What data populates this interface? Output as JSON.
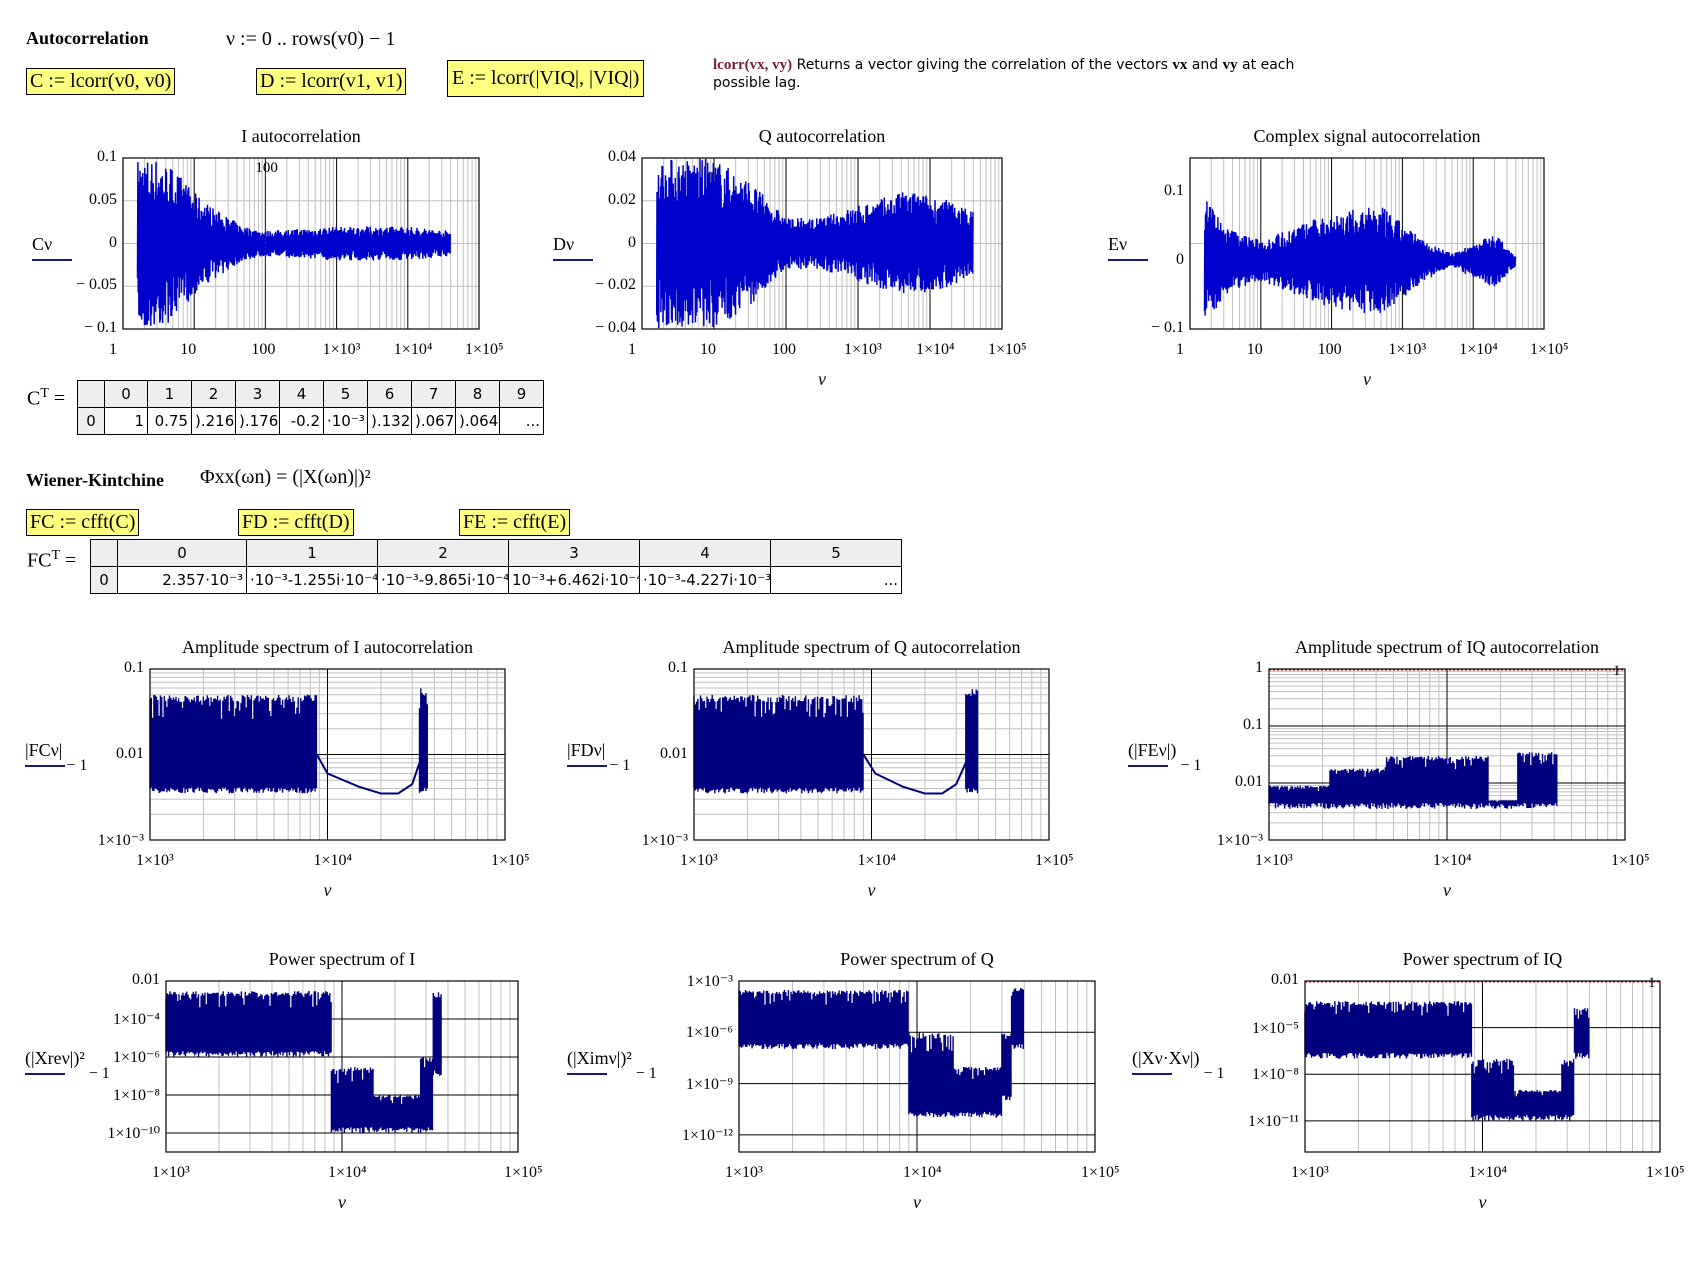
{
  "worksheet": {
    "section_autocorr": {
      "heading": "Autocorrelation",
      "range_def": "ν := 0 .. rows(v0) − 1",
      "expr_c": "C := lcorr(v0, v0)",
      "expr_d": "D := lcorr(v1, v1)",
      "expr_e": "E := lcorr(|VIQ|, |VIQ|)"
    },
    "help": {
      "func": "lcorr(vx, vy)",
      "text1": " Returns a vector giving the correlation of the vectors ",
      "vx": "vx",
      "and": " and ",
      "vy": "vy",
      "text2": " at each possible lag."
    },
    "ct_table": {
      "label": "C",
      "sup": "T",
      "eq": "=",
      "col_headers": [
        "",
        "0",
        "1",
        "2",
        "3",
        "4",
        "5",
        "6",
        "7",
        "8",
        "9"
      ],
      "row": [
        "0",
        "1",
        "0.75",
        ").216",
        ").176",
        "-0.2",
        "·10⁻³",
        ").132",
        ").067",
        ").064",
        "..."
      ]
    },
    "section_wk": {
      "heading": "Wiener-Kintchine",
      "formula": "Φxx(ωn) = (|X(ωn)|)²",
      "expr_fc": "FC := cfft(C)",
      "expr_fd": "FD := cfft(D)",
      "expr_fe": "FE := cfft(E)"
    },
    "fct_table": {
      "label": "FC",
      "sup": "T",
      "eq": "=",
      "col_headers": [
        "",
        "0",
        "1",
        "2",
        "3",
        "4",
        "5"
      ],
      "row": [
        "0",
        "2.357·10⁻³",
        "·10⁻³-1.255i·10⁻⁴",
        "·10⁻³-9.865i·10⁻⁴",
        "10⁻³+6.462i·10⁻⁴",
        "·10⁻³-4.227i·10⁻³",
        "..."
      ]
    }
  },
  "colors": {
    "trace": "#0000cc",
    "trace_dark": "#000080",
    "highlight": "#ffff80",
    "grid_major": "#000000",
    "grid_minor": "#c0c0c0",
    "marker": "#cc0000",
    "help_func": "#7a1a3a"
  },
  "chart_data": [
    {
      "id": "i_autocorr",
      "type": "line",
      "title": "I autocorrelation",
      "ylabel": "Cν",
      "xlabel": "",
      "xscale": "log",
      "xlim": [
        1,
        100000
      ],
      "ylim": [
        -0.1,
        0.1
      ],
      "xticks": [
        "1",
        "10",
        "100",
        "1×10³",
        "1×10⁴",
        "1×10⁵"
      ],
      "yticks": [
        "0.1",
        "0.05",
        "0",
        "− 0.05",
        "− 0.1"
      ],
      "marker": {
        "x": 100,
        "label": "100"
      },
      "envelope": {
        "x": [
          2,
          3,
          5,
          10,
          20,
          50,
          100,
          1000,
          10000,
          40000
        ],
        "amp": [
          0.1,
          0.1,
          0.09,
          0.06,
          0.04,
          0.02,
          0.015,
          0.02,
          0.02,
          0.015
        ]
      }
    },
    {
      "id": "q_autocorr",
      "type": "line",
      "title": "Q autocorrelation",
      "ylabel": "Dν",
      "xlabel": "ν",
      "xscale": "log",
      "xlim": [
        1,
        100000
      ],
      "ylim": [
        -0.04,
        0.04
      ],
      "xticks": [
        "1",
        "10",
        "100",
        "1×10³",
        "1×10⁴",
        "1×10⁵"
      ],
      "yticks": [
        "0.04",
        "0.02",
        "0",
        "− 0.02",
        "− 0.04"
      ],
      "envelope": {
        "x": [
          2,
          5,
          10,
          30,
          100,
          300,
          1000,
          5000,
          20000,
          40000
        ],
        "amp": [
          0.04,
          0.04,
          0.04,
          0.03,
          0.012,
          0.012,
          0.018,
          0.025,
          0.02,
          0.015
        ]
      }
    },
    {
      "id": "complex_autocorr",
      "type": "line",
      "title": "Complex signal autocorrelation",
      "ylabel": "Eν",
      "xlabel": "ν",
      "xscale": "log",
      "xlim": [
        1,
        100000
      ],
      "ylim": [
        -0.1,
        0.15
      ],
      "xticks": [
        "1",
        "10",
        "100",
        "1×10³",
        "1×10⁴",
        "1×10⁵"
      ],
      "yticks": [
        "0.1",
        "0",
        "− 0.1"
      ],
      "envelope": {
        "x": [
          1,
          3,
          10,
          30,
          100,
          500,
          2000,
          5000,
          20000,
          40000
        ],
        "amp": [
          0.15,
          0.05,
          0.03,
          0.05,
          0.07,
          0.08,
          0.03,
          0.01,
          0.04,
          0.008
        ]
      }
    },
    {
      "id": "amp_i",
      "type": "line",
      "title": "Amplitude spectrum of I autocorrelation",
      "ylabel": "|FCν|",
      "ylabel_sub": "− 1",
      "xlabel": "ν",
      "xscale": "log",
      "yscale": "log",
      "xlim": [
        1000,
        100000
      ],
      "ylim": [
        0.001,
        0.1
      ],
      "xticks": [
        "1×10³",
        "1×10⁴",
        "1×10⁵"
      ],
      "yticks": [
        "0.1",
        "0.01",
        "1×10⁻³"
      ],
      "bands": [
        {
          "x": [
            1000,
            8700
          ],
          "lo": 0.0035,
          "hi": 0.05
        },
        {
          "x": [
            33000,
            37000
          ],
          "lo": 0.0035,
          "hi": 0.06
        }
      ],
      "curve": {
        "x": [
          8700,
          10000,
          15000,
          20000,
          25000,
          30000,
          33000
        ],
        "y": [
          0.01,
          0.006,
          0.0042,
          0.0035,
          0.0035,
          0.0045,
          0.008
        ]
      }
    },
    {
      "id": "amp_q",
      "type": "line",
      "title": "Amplitude spectrum of Q autocorrelation",
      "ylabel": "|FDν|",
      "ylabel_sub": "− 1",
      "xlabel": "ν",
      "xscale": "log",
      "yscale": "log",
      "xlim": [
        1000,
        100000
      ],
      "ylim": [
        0.001,
        0.1
      ],
      "xticks": [
        "1×10³",
        "1×10⁴",
        "1×10⁵"
      ],
      "yticks": [
        "0.1",
        "0.01",
        "1×10⁻³"
      ],
      "bands": [
        {
          "x": [
            1000,
            9000
          ],
          "lo": 0.0035,
          "hi": 0.05
        },
        {
          "x": [
            34000,
            40000
          ],
          "lo": 0.0035,
          "hi": 0.06
        }
      ],
      "curve": {
        "x": [
          9000,
          10500,
          15000,
          20000,
          25000,
          30000,
          34000
        ],
        "y": [
          0.01,
          0.006,
          0.0042,
          0.0035,
          0.0035,
          0.0045,
          0.008
        ]
      }
    },
    {
      "id": "amp_iq",
      "type": "line",
      "title": "Amplitude spectrum of IQ autocorrelation",
      "ylabel": "(|FEν|)",
      "ylabel_sub": "− 1",
      "xlabel": "ν",
      "xscale": "log",
      "yscale": "log",
      "xlim": [
        1000,
        100000
      ],
      "ylim": [
        0.001,
        1
      ],
      "xticks": [
        "1×10³",
        "1×10⁴",
        "1×10⁵"
      ],
      "yticks": [
        "1",
        "0.1",
        "0.01",
        "1×10⁻³"
      ],
      "marker_h": {
        "y": 1,
        "label": "1"
      },
      "bands": [
        {
          "x": [
            1000,
            2200
          ],
          "lo": 0.0035,
          "hi": 0.009
        },
        {
          "x": [
            2200,
            4500
          ],
          "lo": 0.0035,
          "hi": 0.018
        },
        {
          "x": [
            4500,
            17000
          ],
          "lo": 0.0035,
          "hi": 0.03
        },
        {
          "x": [
            17000,
            25000
          ],
          "lo": 0.0035,
          "hi": 0.005
        },
        {
          "x": [
            25000,
            42000
          ],
          "lo": 0.0035,
          "hi": 0.035
        }
      ]
    },
    {
      "id": "pow_i",
      "type": "line",
      "title": "Power spectrum of I",
      "ylabel": "(|Xreν|)²",
      "ylabel_sub": "− 1",
      "xlabel": "ν",
      "xscale": "log",
      "yscale": "log",
      "xlim": [
        1000,
        100000
      ],
      "ylim": [
        1e-10,
        0.1
      ],
      "xticks": [
        "1×10³",
        "1×10⁴",
        "1×10⁵"
      ],
      "yticks": [
        "0.01",
        "1×10⁻⁴",
        "1×10⁻⁶",
        "1×10⁻⁸",
        "1×10⁻¹⁰"
      ],
      "bands": [
        {
          "x": [
            1000,
            8700
          ],
          "lo": 1e-05,
          "hi": 0.03
        },
        {
          "x": [
            8700,
            15000
          ],
          "lo": 1e-09,
          "hi": 3e-06
        },
        {
          "x": [
            15000,
            28000
          ],
          "lo": 1e-09,
          "hi": 1e-07
        },
        {
          "x": [
            28000,
            33000
          ],
          "lo": 1e-09,
          "hi": 1e-05
        },
        {
          "x": [
            33000,
            37000
          ],
          "lo": 1e-06,
          "hi": 0.03
        }
      ]
    },
    {
      "id": "pow_q",
      "type": "line",
      "title": "Power spectrum of Q",
      "ylabel": "(|Ximν|)²",
      "ylabel_sub": "− 1",
      "xlabel": "ν",
      "xscale": "log",
      "yscale": "log",
      "xlim": [
        1000,
        100000
      ],
      "ylim": [
        1e-12,
        0.01
      ],
      "xticks": [
        "1×10³",
        "1×10⁴",
        "1×10⁵"
      ],
      "yticks": [
        "1×10⁻³",
        "1×10⁻⁶",
        "1×10⁻⁹",
        "1×10⁻¹²"
      ],
      "bands": [
        {
          "x": [
            1000,
            9000
          ],
          "lo": 1e-06,
          "hi": 0.003
        },
        {
          "x": [
            9000,
            16000
          ],
          "lo": 1e-10,
          "hi": 1e-05
        },
        {
          "x": [
            16000,
            30000
          ],
          "lo": 1e-10,
          "hi": 1e-07
        },
        {
          "x": [
            30000,
            34000
          ],
          "lo": 1e-09,
          "hi": 1e-05
        },
        {
          "x": [
            34000,
            40000
          ],
          "lo": 1e-06,
          "hi": 0.004
        }
      ]
    },
    {
      "id": "pow_iq",
      "type": "line",
      "title": "Power spectrum of IQ",
      "ylabel": "(|Xν·Xν|)",
      "ylabel_sub": "− 1",
      "xlabel": "ν",
      "xscale": "log",
      "yscale": "log",
      "xlim": [
        1000,
        100000
      ],
      "ylim": [
        1e-11,
        1
      ],
      "xticks": [
        "1×10³",
        "1×10⁴",
        "1×10⁵"
      ],
      "yticks": [
        "0.01",
        "1×10⁻⁵",
        "1×10⁻⁸",
        "1×10⁻¹¹"
      ],
      "marker_h": {
        "y": 1,
        "label": "1"
      },
      "bands": [
        {
          "x": [
            1000,
            8700
          ],
          "lo": 1e-05,
          "hi": 0.05
        },
        {
          "x": [
            8700,
            15000
          ],
          "lo": 1e-09,
          "hi": 1e-05
        },
        {
          "x": [
            15000,
            28000
          ],
          "lo": 1e-09,
          "hi": 1e-07
        },
        {
          "x": [
            28000,
            33000
          ],
          "lo": 1e-09,
          "hi": 1e-05
        },
        {
          "x": [
            33000,
            40000
          ],
          "lo": 1e-05,
          "hi": 0.02
        }
      ]
    }
  ]
}
